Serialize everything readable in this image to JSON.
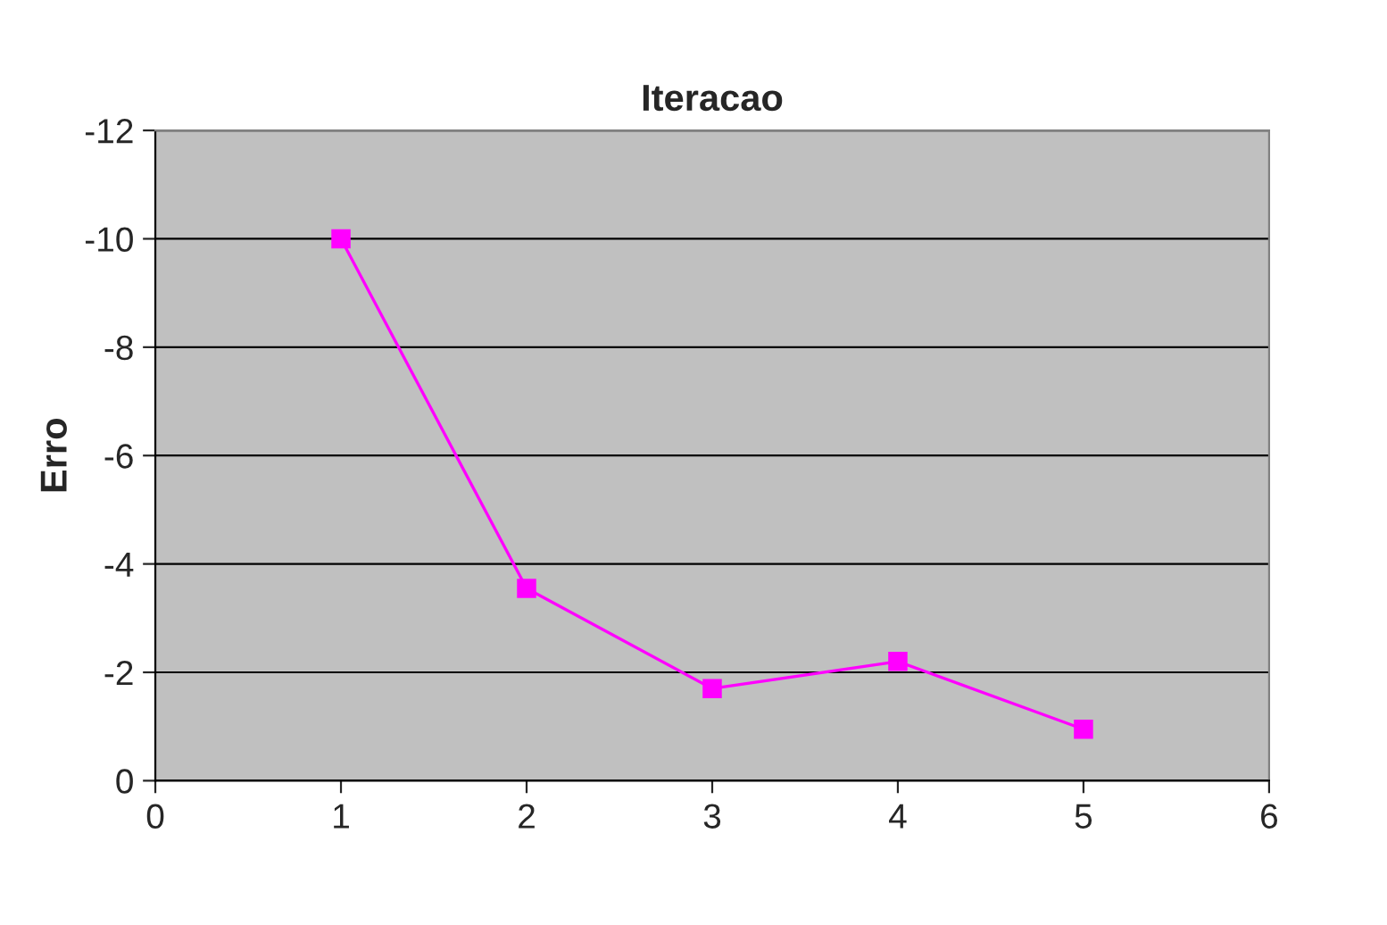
{
  "chart_data": {
    "type": "line",
    "title": "Iteracao",
    "ylabel": "Erro",
    "x": [
      1,
      2,
      3,
      4,
      5
    ],
    "series": [
      {
        "color": "#ff00ff",
        "values": [
          -10,
          -3.55,
          -1.7,
          -2.2,
          -0.95
        ]
      }
    ],
    "xlim": [
      0,
      6
    ],
    "xticks": [
      0,
      1,
      2,
      3,
      4,
      5,
      6
    ],
    "ylim": [
      0,
      -12
    ],
    "yticks": [
      0,
      -2,
      -4,
      -6,
      -8,
      -10,
      -12
    ],
    "grid": "y",
    "marker": "square",
    "line_style": "solid"
  }
}
